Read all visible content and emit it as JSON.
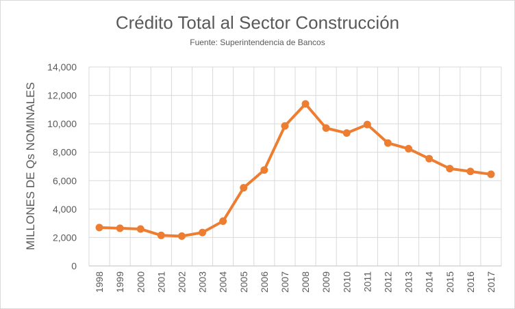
{
  "chart_data": {
    "type": "line",
    "title": "Crédito Total al Sector Construcción",
    "subtitle": "Fuente: Superintendencia de Bancos",
    "xlabel": "",
    "ylabel": "MILLONES DE Qs NOMINALES",
    "categories": [
      "1998",
      "1999",
      "2000",
      "2001",
      "2002",
      "2003",
      "2004",
      "2005",
      "2006",
      "2007",
      "2008",
      "2009",
      "2010",
      "2011",
      "2012",
      "2013",
      "2014",
      "2015",
      "2016",
      "2017"
    ],
    "series": [
      {
        "name": "Crédito Total al Sector Construcción",
        "color": "#ed7d31",
        "values": [
          2700,
          2650,
          2600,
          2150,
          2100,
          2350,
          3150,
          5500,
          6750,
          9850,
          11400,
          9700,
          9350,
          9950,
          8650,
          8250,
          7550,
          6850,
          6650,
          6450
        ]
      }
    ],
    "ylim": [
      0,
      14000
    ],
    "yticks": [
      0,
      2000,
      4000,
      6000,
      8000,
      10000,
      12000,
      14000
    ],
    "ytick_labels": [
      "0",
      "2,000",
      "4,000",
      "6,000",
      "8,000",
      "10,000",
      "12,000",
      "14,000"
    ],
    "grid": true,
    "legend": "none"
  }
}
